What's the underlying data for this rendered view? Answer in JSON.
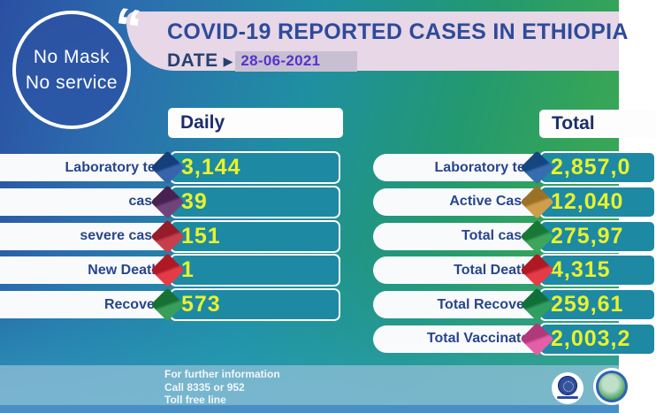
{
  "badge": {
    "line1": "No Mask",
    "line2": "No service"
  },
  "icons": {
    "quote": "“",
    "date_arrow": "▶"
  },
  "header": {
    "title": "COVID-19 REPORTED CASES IN ETHIOPIA",
    "date_label": "DATE",
    "date_value": "28-06-2021"
  },
  "daily": {
    "header": "Daily",
    "rows": [
      {
        "label": "Laboratory test",
        "value": "3,144",
        "diamond_color": "#1b4f9e"
      },
      {
        "label": "cases",
        "value": "39",
        "diamond_color": "#5c2a68"
      },
      {
        "label": "severe cases",
        "value": "151",
        "diamond_color": "#bf2433"
      },
      {
        "label": "New Deaths",
        "value": "1",
        "diamond_color": "#e0202e"
      },
      {
        "label": "Recovery",
        "value": "573",
        "diamond_color": "#1d9142"
      }
    ]
  },
  "total": {
    "header": "Total",
    "rows": [
      {
        "label": "Laboratory test",
        "value": "2,857,0",
        "diamond_color": "#1b59a4"
      },
      {
        "label": "Active Cases",
        "value": "12,040",
        "diamond_color": "#c79133"
      },
      {
        "label": "Total cases",
        "value": "275,97",
        "diamond_color": "#219a45"
      },
      {
        "label": "Total Deaths",
        "value": "4,315",
        "diamond_color": "#e0202e"
      },
      {
        "label": "Total Recovery",
        "value": "259,61",
        "diamond_color": "#15904a"
      },
      {
        "label": "Total Vaccinated",
        "value": "2,003,2",
        "diamond_color": "#e1499c"
      }
    ]
  },
  "footer": {
    "info_lines": [
      "For further information",
      "Call 8335 or 952",
      "Toll free line"
    ]
  },
  "colors": {
    "banner_bg": "#e7d7e7",
    "title_text": "#2e4a9a",
    "date_text": "#5633cc",
    "date_highlight": "#c9bfd2",
    "value_text": "#e8f22c",
    "value_box_fill": "#1d89a3",
    "label_text": "#27458e",
    "footer_band": "#8fbcd6",
    "bottom_strip": "#4a8ec6"
  },
  "chart_data": {
    "type": "table",
    "title": "COVID-19 REPORTED CASES IN ETHIOPIA",
    "date": "28-06-2021",
    "groups": [
      {
        "name": "Daily",
        "rows": [
          [
            "Laboratory test",
            "3,144"
          ],
          [
            "cases",
            "39"
          ],
          [
            "severe cases",
            "151"
          ],
          [
            "New Deaths",
            "1"
          ],
          [
            "Recovery",
            "573"
          ]
        ]
      },
      {
        "name": "Total",
        "rows": [
          [
            "Laboratory test",
            "2,857,0"
          ],
          [
            "Active Cases",
            "12,040"
          ],
          [
            "Total cases",
            "275,97"
          ],
          [
            "Total Deaths",
            "4,315"
          ],
          [
            "Total Recovery",
            "259,61"
          ],
          [
            "Total Vaccinated",
            "2,003,2"
          ]
        ]
      }
    ]
  }
}
